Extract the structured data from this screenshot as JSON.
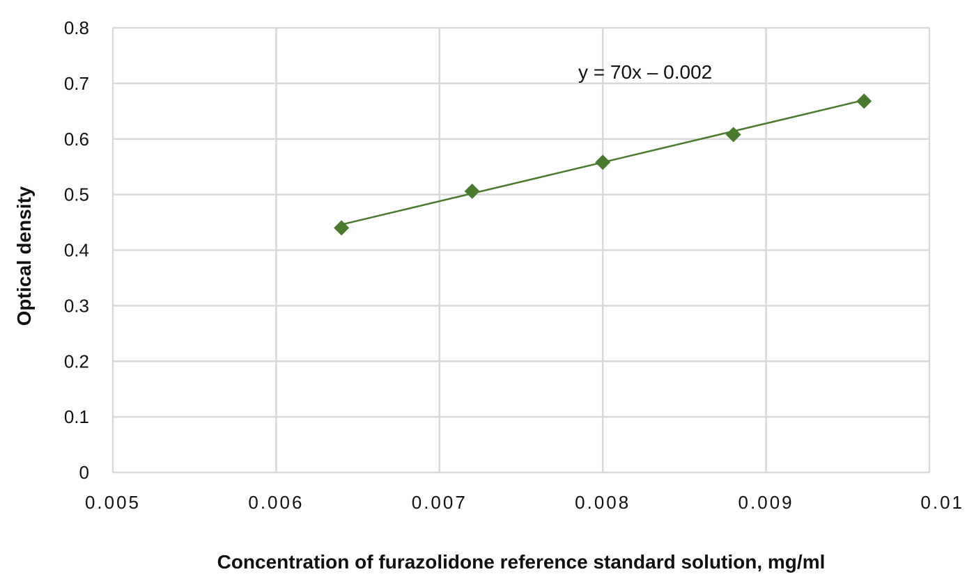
{
  "chart_data": {
    "type": "scatter",
    "xlabel": "Concentration of furazolidone  reference standard solution, mg/ml",
    "ylabel": "Optical density",
    "xlim": [
      0.005,
      0.01
    ],
    "ylim": [
      0,
      0.8
    ],
    "x_ticks": [
      0.005,
      0.006,
      0.007,
      0.008,
      0.009,
      0.01
    ],
    "x_tick_labels": [
      "0.005",
      "0.006",
      "0.007",
      "0.008",
      "0.009",
      "0.01"
    ],
    "y_ticks": [
      0,
      0.1,
      0.2,
      0.3,
      0.4,
      0.5,
      0.6,
      0.7,
      0.8
    ],
    "y_tick_labels": [
      "0",
      "0.1",
      "0.2",
      "0.3",
      "0.4",
      "0.5",
      "0.6",
      "0.7",
      "0.8"
    ],
    "grid": true,
    "marker": "diamond",
    "color": "#4a7a2e",
    "series": [
      {
        "x": [
          0.0064,
          0.0072,
          0.008,
          0.0088,
          0.0096
        ],
        "y": [
          0.44,
          0.506,
          0.558,
          0.608,
          0.668
        ]
      }
    ],
    "trendline": {
      "slope": 70,
      "intercept": -0.002,
      "x_range": [
        0.0064,
        0.0096
      ]
    },
    "annotations": [
      {
        "text": "y = 70x – 0.002"
      }
    ]
  }
}
